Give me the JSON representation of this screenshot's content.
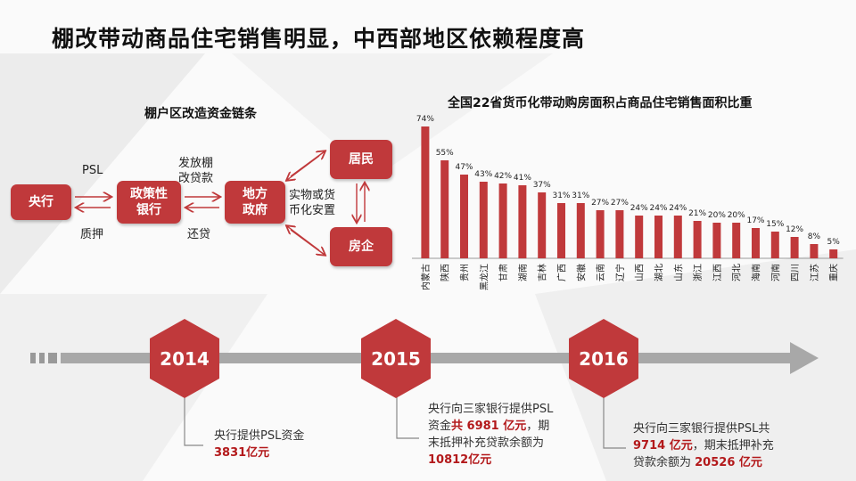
{
  "title": "棚改带动商品住宅销售明显，中西部地区依赖程度高",
  "flow": {
    "title": "棚户区改造资金链条",
    "nodes": {
      "central_bank": "央行",
      "policy_bank": "政策性\n银行",
      "local_gov": "地方\n政府",
      "residents": "居民",
      "developers": "房企"
    },
    "labels": {
      "psl": "PSL",
      "pledge": "质押",
      "loan": "发放棚\n改贷款",
      "repay": "还贷",
      "resettle": "实物或货\n币化安置"
    }
  },
  "chart_data": {
    "type": "bar",
    "title": "全国22省货币化带动购房面积占商品住宅销售面积比重",
    "categories": [
      "内蒙古",
      "陕西",
      "贵州",
      "黑龙江",
      "甘肃",
      "湖南",
      "吉林",
      "广西",
      "安徽",
      "云南",
      "辽宁",
      "山西",
      "湖北",
      "山东",
      "浙江",
      "江西",
      "河北",
      "海南",
      "河南",
      "四川",
      "江苏",
      "重庆"
    ],
    "values": [
      74,
      55,
      47,
      43,
      42,
      41,
      37,
      31,
      31,
      27,
      27,
      24,
      24,
      24,
      21,
      20,
      20,
      17,
      15,
      12,
      8,
      5
    ],
    "value_labels": [
      "74%",
      "55%",
      "47%",
      "43%",
      "42%",
      "41%",
      "37%",
      "31%",
      "31%",
      "27%",
      "27%",
      "24%",
      "24%",
      "24%",
      "21%",
      "20%",
      "20%",
      "17%",
      "15%",
      "12%",
      "8%",
      "5%"
    ],
    "ylim": [
      0,
      80
    ],
    "color": "#c0393b"
  },
  "timeline": {
    "years": [
      {
        "year": "2014"
      },
      {
        "year": "2015"
      },
      {
        "year": "2016"
      }
    ],
    "notes": [
      {
        "t1": "央行提供PSL资金",
        "h1": "3831亿元"
      },
      {
        "t1": "央行向三家银行提供PSL",
        "t2": "资金",
        "h1": "共  6981 亿元",
        "t3": "，期",
        "t4": "末抵押补充贷款余额为",
        "h2": "10812亿元"
      },
      {
        "t1": "央行向三家银行提供PSL共",
        "h1": "9714 亿元",
        "t2": "，期末抵押补充",
        "t3": "贷款余额为 ",
        "h2": "20526 亿元"
      }
    ]
  }
}
